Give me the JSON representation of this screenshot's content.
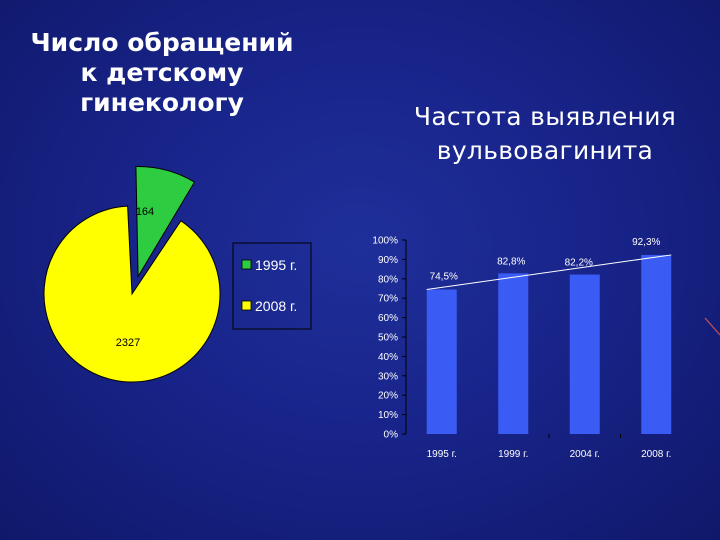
{
  "colors": {
    "background": "#18248a",
    "pie_1995": "#2ecc40",
    "pie_2008": "#ffff00",
    "bar": "#3a5cf5",
    "text": "#ffffff"
  },
  "titles": {
    "left": [
      "Число обращений",
      "к детскому",
      "гинекологу"
    ],
    "right": [
      "Частота выявления",
      "вульвовагинита"
    ]
  },
  "chart_data": [
    {
      "type": "pie",
      "slices": [
        {
          "label": "1995 г.",
          "value": 164,
          "color": "#2ecc40"
        },
        {
          "label": "2008 г.",
          "value": 2327,
          "color": "#ffff00"
        }
      ],
      "legend": [
        "1995 г.",
        "2008 г."
      ],
      "data_labels": [
        "164",
        "2327"
      ],
      "exploded": "1995 г."
    },
    {
      "type": "bar",
      "categories": [
        "1995 г.",
        "1999 г.",
        "2004 г.",
        "2008 г."
      ],
      "values": [
        74.5,
        82.8,
        82.2,
        92.3
      ],
      "data_labels": [
        "74,5%",
        "82,8%",
        "82,2%",
        "92,3%"
      ],
      "ylim": [
        0,
        100
      ],
      "yticks": [
        "0%",
        "10%",
        "20%",
        "30%",
        "40%",
        "50%",
        "60%",
        "70%",
        "80%",
        "90%",
        "100%"
      ],
      "trendline": true,
      "grid": false
    }
  ]
}
